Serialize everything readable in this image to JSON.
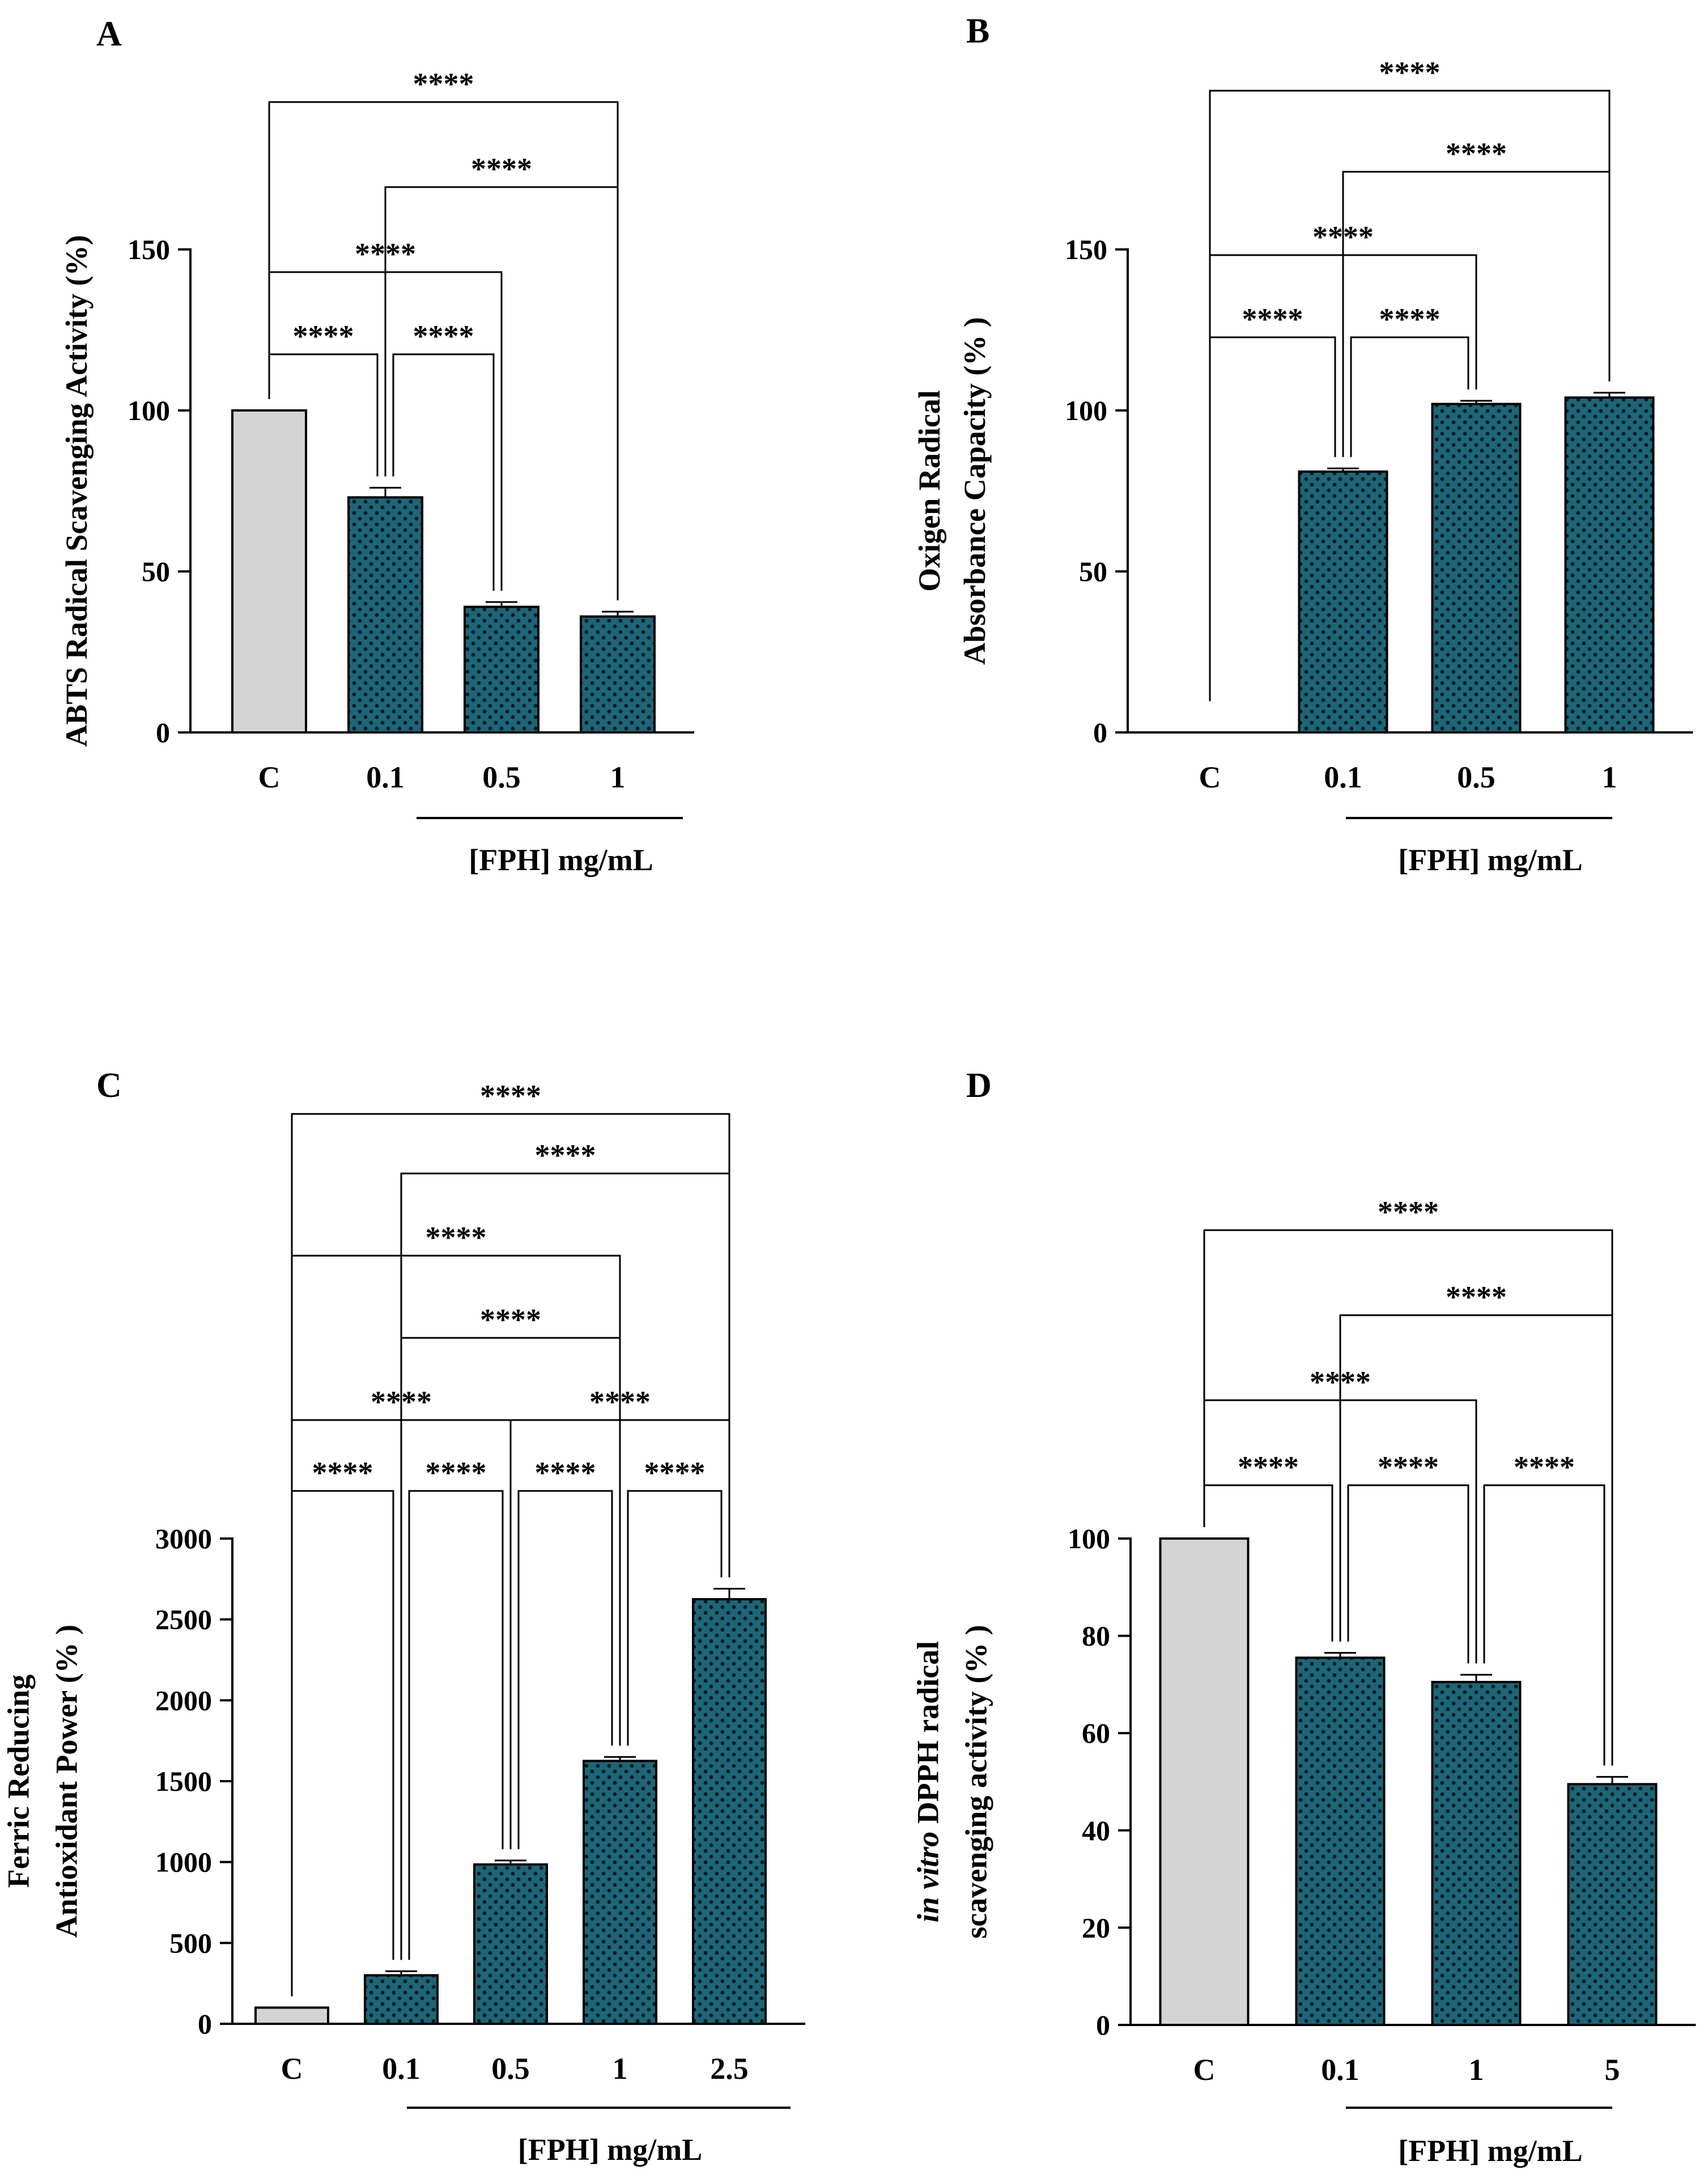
{
  "colors": {
    "control_bar": "#d4d4d4",
    "treatment_bar": "#1c6678",
    "dots": "#0a1a20",
    "axis": "#000000",
    "bracket": "#000000",
    "bracket_light": "#8a8a8a"
  },
  "chart_data": [
    {
      "id": "A",
      "type": "bar",
      "panel_label": "A",
      "ylabel": [
        "ABTS Radical Scavenging Activity (%)"
      ],
      "ylabel_italic_prefix": "",
      "xlabel": "[FPH] mg/mL",
      "categories": [
        "C",
        "0.1",
        "0.5",
        "1"
      ],
      "values": [
        100,
        73,
        39,
        36
      ],
      "errors": [
        0,
        3,
        1.5,
        1.5
      ],
      "ylim": [
        0,
        150
      ],
      "yticks": [
        0,
        50,
        100,
        150
      ],
      "significance": [
        {
          "from": 0,
          "to": 1,
          "label": "****"
        },
        {
          "from": 1,
          "to": 2,
          "label": "****"
        },
        {
          "from": 0,
          "to": 2,
          "label": "****"
        },
        {
          "from": 1,
          "to": 3,
          "label": "****"
        },
        {
          "from": 0,
          "to": 3,
          "label": "****"
        }
      ]
    },
    {
      "id": "B",
      "type": "bar",
      "panel_label": "B",
      "ylabel": [
        "Oxigen Radical",
        "Absorbance Capacity (% )"
      ],
      "ylabel_italic_prefix": "",
      "xlabel": "[FPH] mg/mL",
      "categories": [
        "C",
        "0.1",
        "0.5",
        "1"
      ],
      "values": [
        0,
        81,
        102,
        104
      ],
      "errors": [
        0,
        1,
        1,
        1.5
      ],
      "ylim": [
        0,
        150
      ],
      "yticks": [
        0,
        50,
        100,
        150
      ],
      "significance": [
        {
          "from": 0,
          "to": 1,
          "label": "****"
        },
        {
          "from": 1,
          "to": 2,
          "label": "****"
        },
        {
          "from": 0,
          "to": 2,
          "label": "****"
        },
        {
          "from": 1,
          "to": 3,
          "label": "****"
        },
        {
          "from": 0,
          "to": 3,
          "label": "****"
        }
      ]
    },
    {
      "id": "C",
      "type": "bar",
      "panel_label": "C",
      "ylabel": [
        "Ferric Reducing",
        "Antioxidant Power (% )"
      ],
      "ylabel_italic_prefix": "",
      "xlabel": "[FPH] mg/mL",
      "categories": [
        "C",
        "0.1",
        "0.5",
        "1",
        "2.5"
      ],
      "values": [
        100,
        300,
        985,
        1625,
        2625
      ],
      "errors": [
        0,
        25,
        25,
        25,
        65
      ],
      "ylim": [
        0,
        3000
      ],
      "yticks": [
        0,
        500,
        1000,
        1500,
        2000,
        2500,
        3000
      ],
      "significance": [
        {
          "from": 0,
          "to": 1,
          "label": "****"
        },
        {
          "from": 1,
          "to": 2,
          "label": "****"
        },
        {
          "from": 2,
          "to": 3,
          "label": "****"
        },
        {
          "from": 3,
          "to": 4,
          "label": "****"
        },
        {
          "from": 0,
          "to": 2,
          "label": "****"
        },
        {
          "from": 2,
          "to": 4,
          "label": "****"
        },
        {
          "from": 1,
          "to": 3,
          "label": "****"
        },
        {
          "from": 0,
          "to": 3,
          "label": "****"
        },
        {
          "from": 1,
          "to": 4,
          "label": "****"
        },
        {
          "from": 0,
          "to": 4,
          "label": "****"
        }
      ]
    },
    {
      "id": "D",
      "type": "bar",
      "panel_label": "D",
      "ylabel": [
        "DPPH radical",
        "scavenging activity (% )"
      ],
      "ylabel_italic_prefix": "in vitro",
      "xlabel": "[FPH] mg/mL",
      "categories": [
        "C",
        "0.1",
        "1",
        "5"
      ],
      "values": [
        100,
        75.5,
        70.5,
        49.5
      ],
      "errors": [
        0,
        1,
        1.5,
        1.5
      ],
      "ylim": [
        0,
        100
      ],
      "yticks": [
        0,
        20,
        40,
        60,
        80,
        100
      ],
      "significance": [
        {
          "from": 0,
          "to": 1,
          "label": "****"
        },
        {
          "from": 1,
          "to": 2,
          "label": "****"
        },
        {
          "from": 2,
          "to": 3,
          "label": "****"
        },
        {
          "from": 0,
          "to": 2,
          "label": "****"
        },
        {
          "from": 1,
          "to": 3,
          "label": "****"
        },
        {
          "from": 0,
          "to": 3,
          "label": "****"
        }
      ]
    }
  ]
}
